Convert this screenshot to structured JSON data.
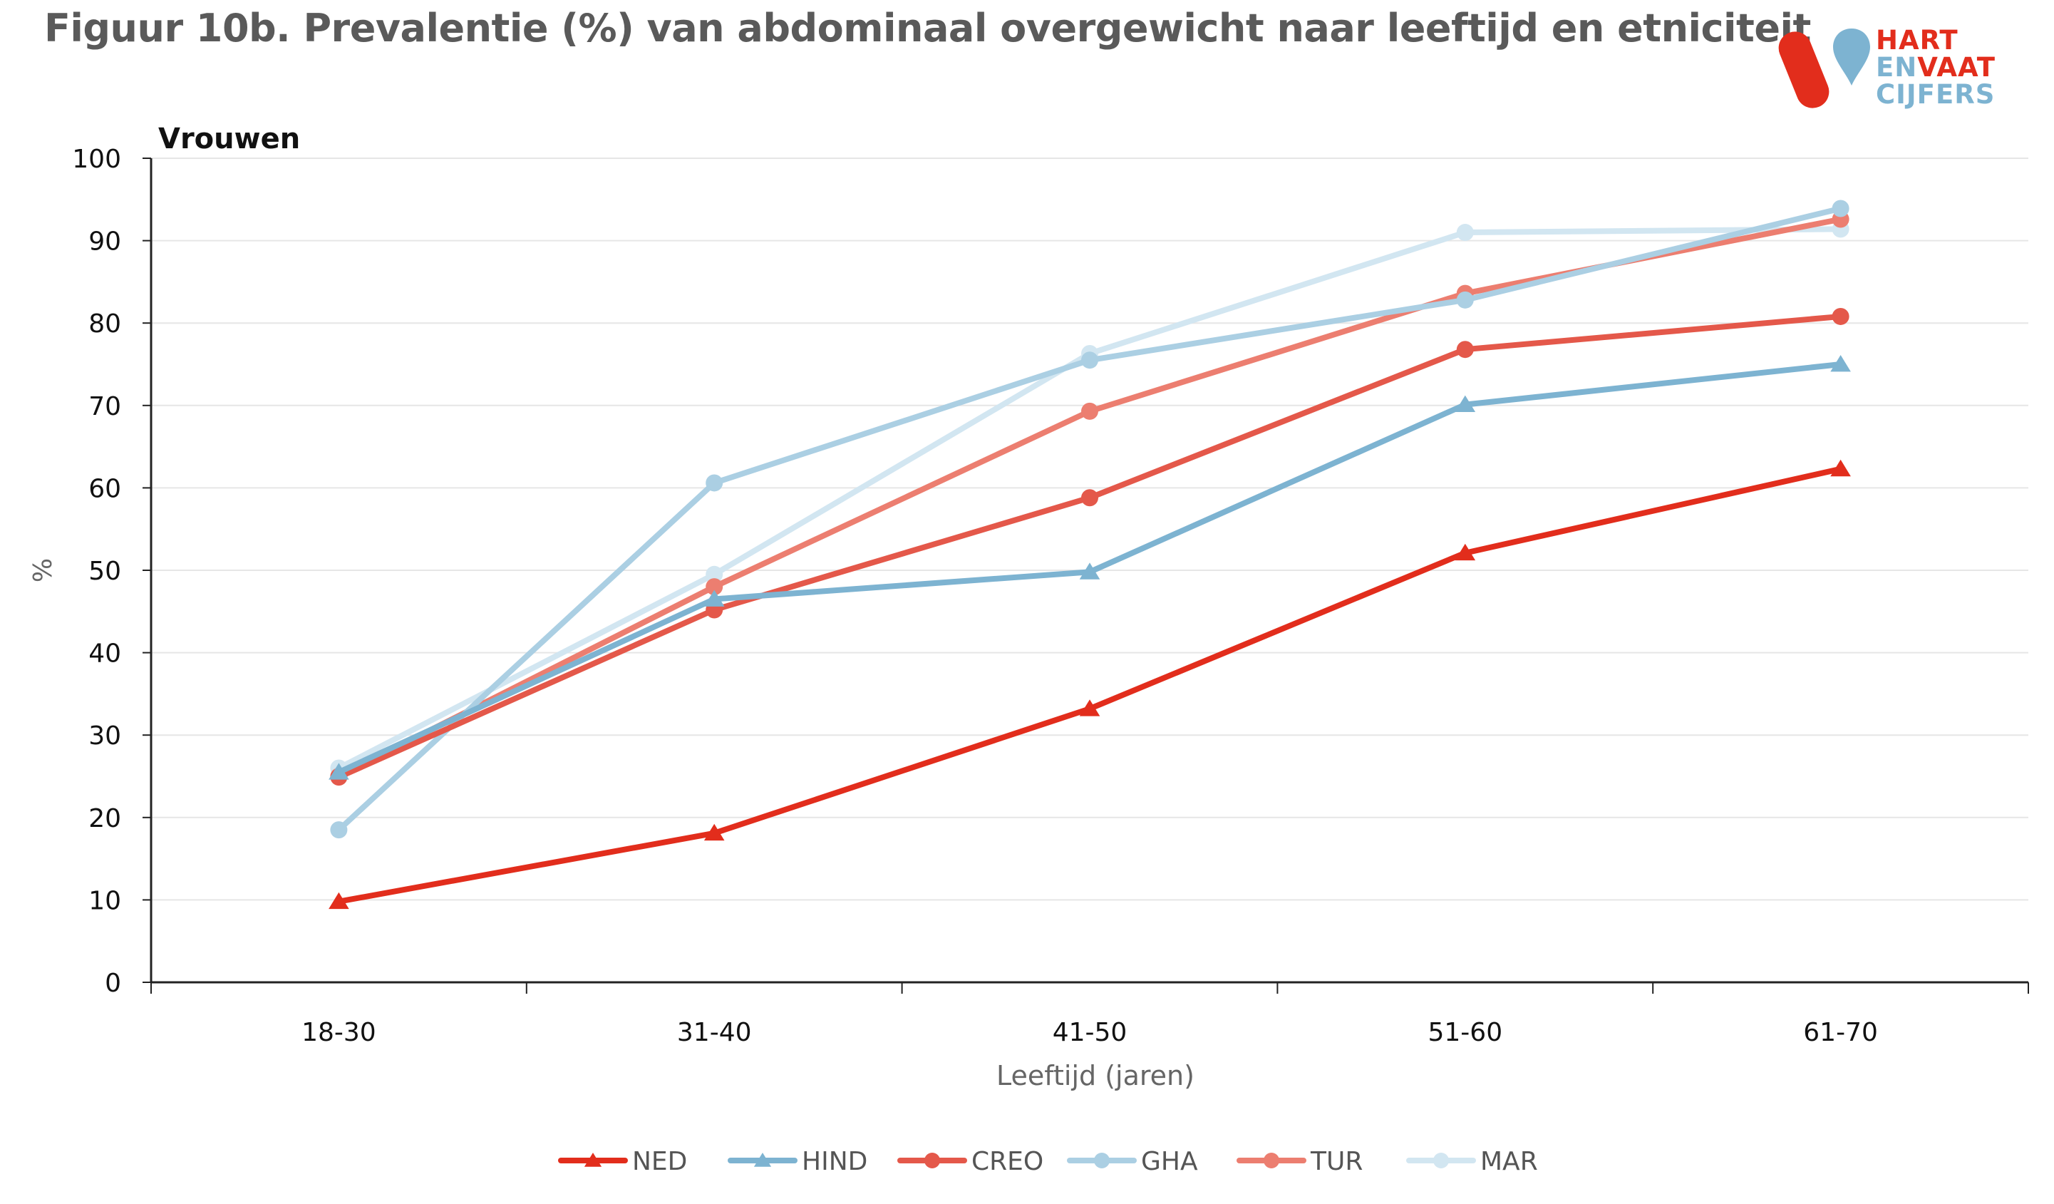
{
  "title": "Figuur 10b. Prevalentie (%) van abdominaal overgewicht naar leeftijd en etniciteit",
  "logo": {
    "line1": "HART",
    "line2a": "EN",
    "line2b": "VAAT",
    "line3": "CIJFERS",
    "colors": {
      "red": "#e22d1c",
      "blue": "#7db3d1"
    }
  },
  "chart_data": {
    "type": "line",
    "subtitle": "Vrouwen",
    "xlabel": "Leeftijd (jaren)",
    "ylabel": "%",
    "ylim": [
      0,
      100
    ],
    "yticks": [
      0,
      10,
      20,
      30,
      40,
      50,
      60,
      70,
      80,
      90,
      100
    ],
    "grid": true,
    "legend": "bottom",
    "categories": [
      "18-30",
      "31-40",
      "41-50",
      "51-60",
      "61-70"
    ],
    "series": [
      {
        "name": "NED",
        "marker": "triangle",
        "color": "#e22d1c",
        "values": [
          9.8,
          18.1,
          33.2,
          52.1,
          62.3
        ]
      },
      {
        "name": "HIND",
        "marker": "triangle",
        "color": "#7db3d1",
        "values": [
          25.5,
          46.5,
          49.8,
          70.1,
          75.0
        ]
      },
      {
        "name": "CREO",
        "marker": "circle",
        "color": "#e4584a",
        "values": [
          24.9,
          45.2,
          58.8,
          76.8,
          80.8
        ]
      },
      {
        "name": "GHA",
        "marker": "circle",
        "color": "#abcfe3",
        "values": [
          18.5,
          60.6,
          75.5,
          82.8,
          93.9
        ]
      },
      {
        "name": "TUR",
        "marker": "circle",
        "color": "#ec7e70",
        "values": [
          25.0,
          48.0,
          69.3,
          83.6,
          92.6
        ]
      },
      {
        "name": "MAR",
        "marker": "circle",
        "color": "#d2e6f1",
        "values": [
          26.0,
          49.5,
          76.3,
          91.0,
          91.4
        ]
      }
    ]
  }
}
